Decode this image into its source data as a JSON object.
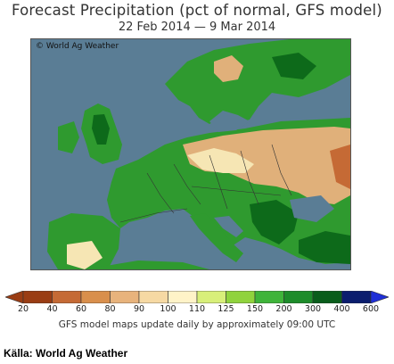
{
  "header": {
    "title": "Forecast Precipitation (pct of normal, GFS model)",
    "date_range": "22 Feb 2014 — 9 Mar 2014"
  },
  "map": {
    "copyright": "© World Ag Weather",
    "colors": {
      "ocean": "#5a7d95",
      "land_dry": "#e0b07a",
      "land_normal": "#f6e6b4",
      "land_wet": "#2f9a2f",
      "land_very_wet": "#0d6a1a"
    }
  },
  "legend": {
    "labels": [
      "20",
      "40",
      "60",
      "80",
      "90",
      "100",
      "110",
      "125",
      "150",
      "200",
      "300",
      "400",
      "600"
    ],
    "colors": [
      "#9a3d14",
      "#c56a35",
      "#d98f4c",
      "#e8b37c",
      "#f6d9a3",
      "#fff3c8",
      "#d8ef7a",
      "#90d33d",
      "#3fb43a",
      "#1d8c2a",
      "#0a5d1b",
      "#0b1d6e",
      "#1f2fd6"
    ]
  },
  "footer": {
    "note": "GFS model maps update daily by approximately 09:00 UTC",
    "source": "Källa: World Ag Weather"
  }
}
